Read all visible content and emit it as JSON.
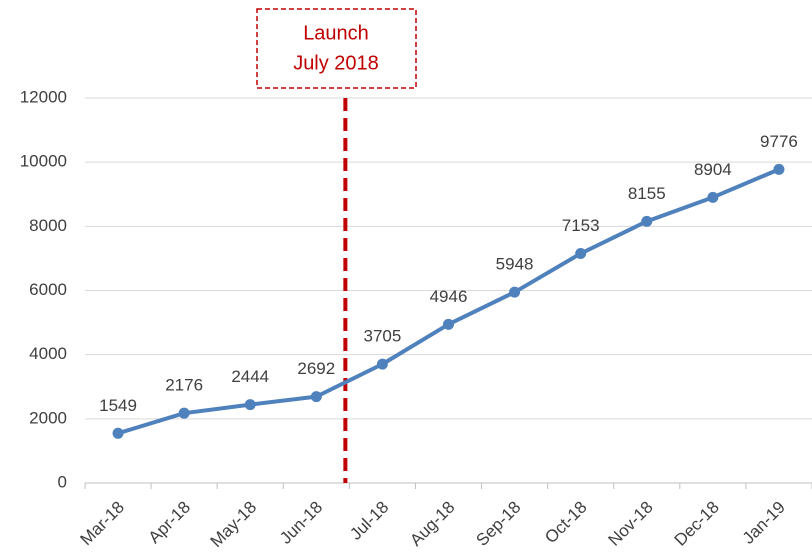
{
  "chart_data": {
    "type": "line",
    "categories": [
      "Mar-18",
      "Apr-18",
      "May-18",
      "Jun-18",
      "Jul-18",
      "Aug-18",
      "Sep-18",
      "Oct-18",
      "Nov-18",
      "Dec-18",
      "Jan-19"
    ],
    "values": [
      1549,
      2176,
      2444,
      2692,
      3705,
      4946,
      5948,
      7153,
      8155,
      8904,
      9776
    ],
    "color": "#4f81bd",
    "ylim": [
      0,
      12000
    ],
    "yticks": [
      0,
      2000,
      4000,
      6000,
      8000,
      10000,
      12000
    ],
    "grid": true,
    "annotation": {
      "lines": [
        "Launch",
        "July 2018"
      ],
      "color": "#c00000"
    }
  }
}
